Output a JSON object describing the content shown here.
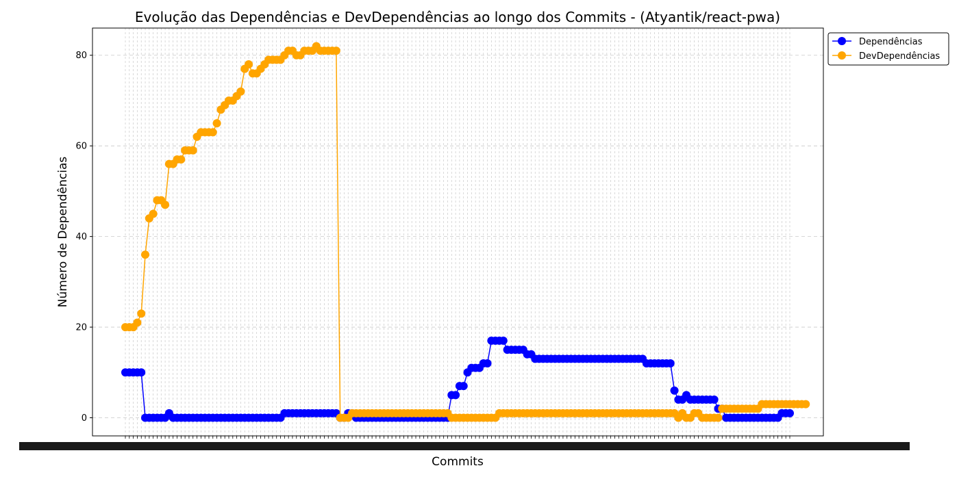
{
  "chart_data": {
    "type": "line",
    "title": "Evolução das Dependências e DevDependências ao longo dos Commits - (Atyantik/react-pwa)",
    "xlabel": "Commits",
    "ylabel": "Número de Dependências",
    "ylim": [
      -4,
      86
    ],
    "y_ticks": [
      0,
      20,
      40,
      60,
      80
    ],
    "y_tick_labels": [
      "0",
      "20",
      "40",
      "60",
      "80"
    ],
    "x_tick_labels_note": "commit hashes (illegible, overlapping)",
    "grid": true,
    "legend_position": "top-right (outside plot)",
    "series": [
      {
        "name": "Dependências",
        "color": "#0000ff",
        "values": [
          10,
          10,
          10,
          10,
          10,
          0,
          0,
          0,
          0,
          0,
          0,
          1,
          0,
          0,
          0,
          0,
          0,
          0,
          0,
          0,
          0,
          0,
          0,
          0,
          0,
          0,
          0,
          0,
          0,
          0,
          0,
          0,
          0,
          0,
          0,
          0,
          0,
          0,
          0,
          0,
          1,
          1,
          1,
          1,
          1,
          1,
          1,
          1,
          1,
          1,
          1,
          1,
          1,
          1,
          0,
          0,
          1,
          1,
          0,
          0,
          0,
          0,
          0,
          0,
          0,
          0,
          0,
          0,
          0,
          0,
          0,
          0,
          0,
          0,
          0,
          0,
          0,
          0,
          0,
          0,
          0,
          0,
          5,
          5,
          7,
          7,
          10,
          11,
          11,
          11,
          12,
          12,
          17,
          17,
          17,
          17,
          15,
          15,
          15,
          15,
          15,
          14,
          14,
          13,
          13,
          13,
          13,
          13,
          13,
          13,
          13,
          13,
          13,
          13,
          13,
          13,
          13,
          13,
          13,
          13,
          13,
          13,
          13,
          13,
          13,
          13,
          13,
          13,
          13,
          13,
          13,
          12,
          12,
          12,
          12,
          12,
          12,
          12,
          6,
          4,
          4,
          5,
          4,
          4,
          4,
          4,
          4,
          4,
          4,
          2,
          2,
          0,
          0,
          0,
          0,
          0,
          0,
          0,
          0,
          0,
          0,
          0,
          0,
          0,
          0,
          1,
          1,
          1
        ]
      },
      {
        "name": "DevDependências",
        "color": "#ffa500",
        "values": [
          20,
          20,
          20,
          21,
          23,
          36,
          44,
          45,
          48,
          48,
          47,
          56,
          56,
          57,
          57,
          59,
          59,
          59,
          62,
          63,
          63,
          63,
          63,
          65,
          68,
          69,
          70,
          70,
          71,
          72,
          77,
          78,
          76,
          76,
          77,
          78,
          79,
          79,
          79,
          79,
          80,
          81,
          81,
          80,
          80,
          81,
          81,
          81,
          82,
          81,
          81,
          81,
          81,
          81,
          0,
          0,
          0,
          1,
          1,
          1,
          1,
          1,
          1,
          1,
          1,
          1,
          1,
          1,
          1,
          1,
          1,
          1,
          1,
          1,
          1,
          1,
          1,
          1,
          1,
          1,
          1,
          1,
          0,
          0,
          0,
          0,
          0,
          0,
          0,
          0,
          0,
          0,
          0,
          0,
          1,
          1,
          1,
          1,
          1,
          1,
          1,
          1,
          1,
          1,
          1,
          1,
          1,
          1,
          1,
          1,
          1,
          1,
          1,
          1,
          1,
          1,
          1,
          1,
          1,
          1,
          1,
          1,
          1,
          1,
          1,
          1,
          1,
          1,
          1,
          1,
          1,
          1,
          1,
          1,
          1,
          1,
          1,
          1,
          1,
          0,
          1,
          0,
          0,
          1,
          1,
          0,
          0,
          0,
          0,
          0,
          2,
          2,
          2,
          2,
          2,
          2,
          2,
          2,
          2,
          2,
          3,
          3,
          3,
          3,
          3,
          3,
          3,
          3,
          3,
          3,
          3,
          3
        ]
      }
    ]
  }
}
